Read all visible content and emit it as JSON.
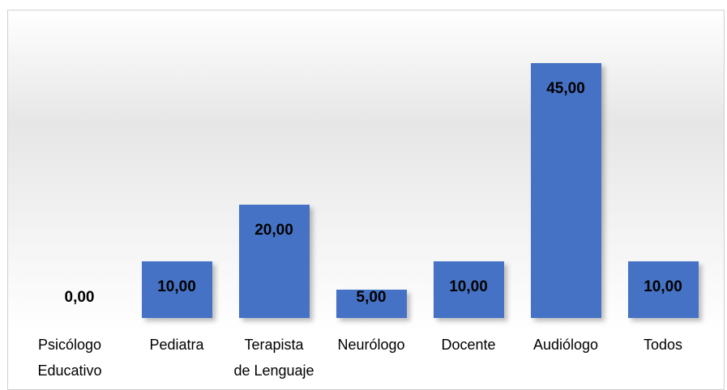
{
  "chart_data": {
    "type": "bar",
    "categories": [
      "Psicólogo\nEducativo",
      "Pediatra",
      "Terapista\nde Lenguaje",
      "Neurólogo",
      "Docente",
      "Audiólogo",
      "Todos"
    ],
    "values": [
      0,
      10,
      20,
      5,
      10,
      45,
      10
    ],
    "value_labels": [
      "0,00",
      "10,00",
      "20,00",
      "5,00",
      "10,00",
      "45,00",
      "10,00"
    ],
    "color": "#4472c4",
    "ylim": [
      0,
      50
    ]
  }
}
